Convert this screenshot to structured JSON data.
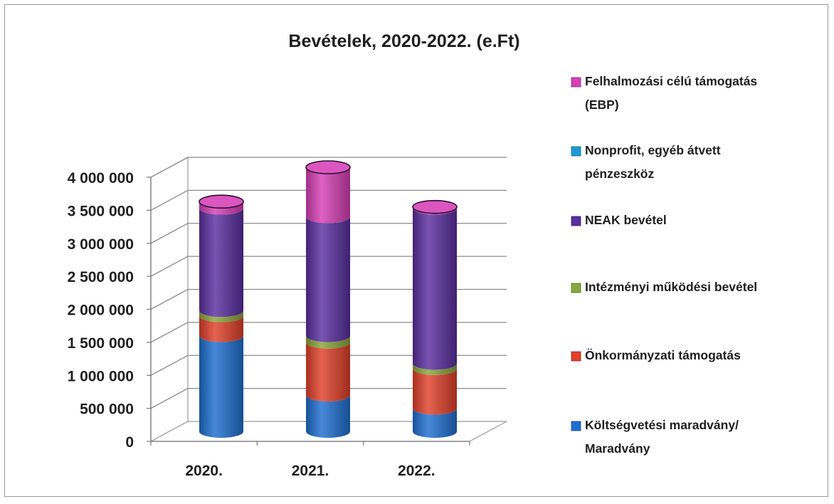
{
  "chart_data": {
    "type": "bar",
    "stacked": true,
    "three_d": true,
    "bar_shape": "cylinder",
    "title": "Bevételek, 2020-2022. (e.Ft)",
    "categories": [
      "2020.",
      "2021.",
      "2022."
    ],
    "y_ticks": [
      "0",
      "500 000",
      "1 000 000",
      "1 500 000",
      "2 000 000",
      "2 500 000",
      "3 000 000",
      "3 500 000",
      "4 000 000"
    ],
    "ylim": [
      0,
      4000000
    ],
    "grid": true,
    "legend_position": "right",
    "series": [
      {
        "name_lines": [
          "Költségvetési maradvány/",
          "Maradvány"
        ],
        "color": "#1f6fd0",
        "values": [
          1450000,
          550000,
          350000
        ]
      },
      {
        "name_lines": [
          "Önkormányzati támogatás"
        ],
        "color": "#e0402a",
        "values": [
          300000,
          800000,
          600000
        ]
      },
      {
        "name_lines": [
          "Intézményi működési bevétel"
        ],
        "color": "#8aa53a",
        "values": [
          80000,
          100000,
          80000
        ]
      },
      {
        "name_lines": [
          "NEAK bevétel"
        ],
        "color": "#5a2fa0",
        "values": [
          1550000,
          1800000,
          2350000
        ]
      },
      {
        "name_lines": [
          "Nonprofit, egyéb átvett",
          "pénzeszköz"
        ],
        "color": "#1d9ad6",
        "values": [
          0,
          0,
          0
        ]
      },
      {
        "name_lines": [
          "Felhalmozási célú támogatás",
          "(EBP)"
        ],
        "color": "#d63fb5",
        "values": [
          100000,
          750000,
          20000
        ]
      }
    ]
  }
}
